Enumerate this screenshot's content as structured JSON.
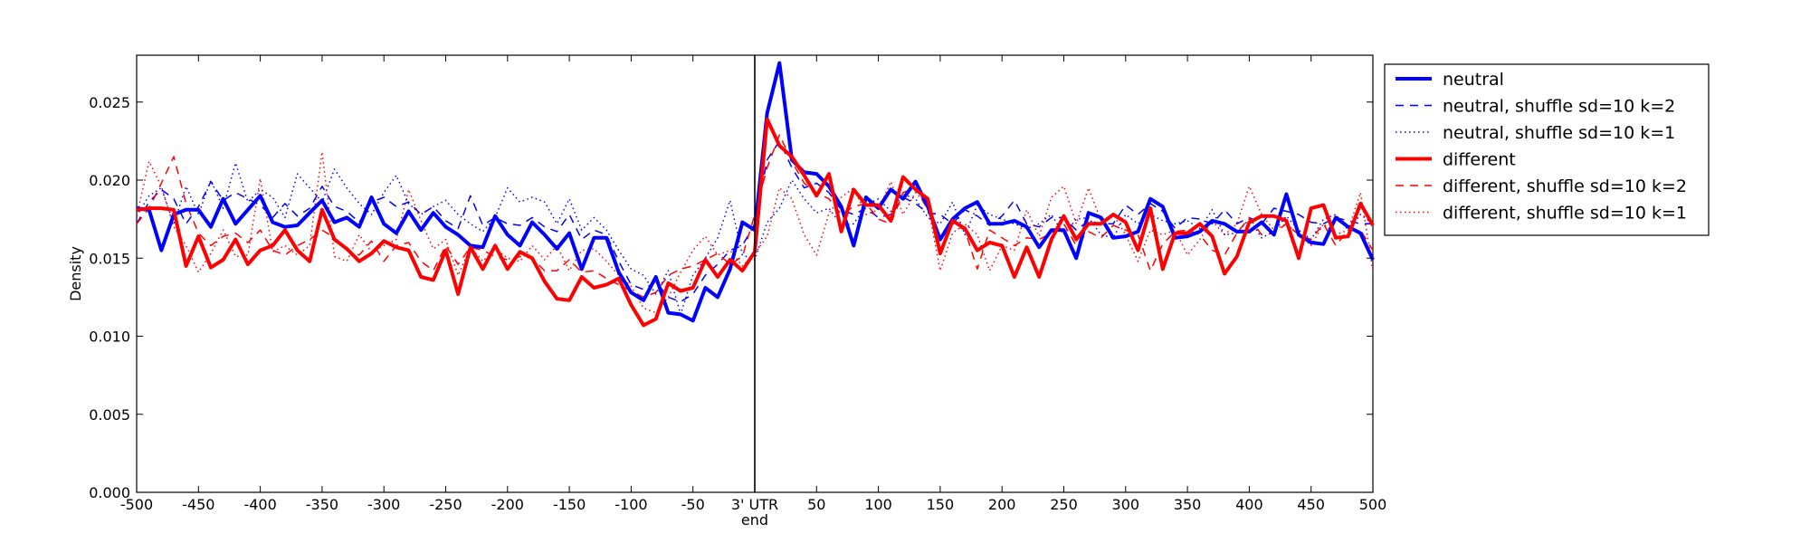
{
  "chart_data": {
    "type": "line",
    "title": "",
    "xlabel": "end",
    "ylabel": "Density",
    "xlim": [
      -500,
      500
    ],
    "ylim": [
      0,
      0.028
    ],
    "grid": false,
    "legend_position": "outside-top-right",
    "vline_x": 0,
    "x_tick_values": [
      -500,
      -450,
      -400,
      -350,
      -300,
      -250,
      -200,
      -150,
      -100,
      -50,
      0,
      50,
      100,
      150,
      200,
      250,
      300,
      350,
      400,
      450,
      500
    ],
    "x_tick_labels": [
      "-500",
      "-450",
      "-400",
      "-350",
      "-300",
      "-250",
      "-200",
      "-150",
      "-100",
      "-50",
      "3' UTR",
      "50",
      "100",
      "150",
      "200",
      "250",
      "300",
      "350",
      "400",
      "450",
      "500"
    ],
    "y_tick_values": [
      0,
      0.005,
      0.01,
      0.015,
      0.02,
      0.025
    ],
    "y_tick_labels": [
      "0.000",
      "0.005",
      "0.010",
      "0.015",
      "0.020",
      "0.025"
    ],
    "x": [
      -500,
      -490,
      -480,
      -470,
      -460,
      -450,
      -440,
      -430,
      -420,
      -410,
      -400,
      -390,
      -380,
      -370,
      -360,
      -350,
      -340,
      -330,
      -320,
      -310,
      -300,
      -290,
      -280,
      -270,
      -260,
      -250,
      -240,
      -230,
      -220,
      -210,
      -200,
      -190,
      -180,
      -170,
      -160,
      -150,
      -140,
      -130,
      -120,
      -110,
      -100,
      -90,
      -80,
      -70,
      -60,
      -50,
      -40,
      -30,
      -20,
      -10,
      0,
      10,
      20,
      30,
      40,
      50,
      60,
      70,
      80,
      90,
      100,
      110,
      120,
      130,
      140,
      150,
      160,
      170,
      180,
      190,
      200,
      210,
      220,
      230,
      240,
      250,
      260,
      270,
      280,
      290,
      300,
      310,
      320,
      330,
      340,
      350,
      360,
      370,
      380,
      390,
      400,
      410,
      420,
      430,
      440,
      450,
      460,
      470,
      480,
      490,
      500
    ],
    "series": [
      {
        "name": "neutral",
        "color": "#0000ff",
        "style": "solid",
        "values": [
          0.0182,
          0.0181,
          0.0155,
          0.0178,
          0.0181,
          0.0181,
          0.017,
          0.0188,
          0.0172,
          0.0181,
          0.019,
          0.0173,
          0.017,
          0.0171,
          0.0179,
          0.0187,
          0.0173,
          0.0176,
          0.017,
          0.0189,
          0.0172,
          0.0166,
          0.018,
          0.0168,
          0.0179,
          0.017,
          0.0165,
          0.0158,
          0.0157,
          0.0177,
          0.0165,
          0.0158,
          0.0173,
          0.0165,
          0.0156,
          0.0166,
          0.0143,
          0.0163,
          0.0163,
          0.0141,
          0.0128,
          0.0123,
          0.0138,
          0.0115,
          0.0114,
          0.011,
          0.0131,
          0.0125,
          0.0143,
          0.0173,
          0.0168,
          0.0243,
          0.0275,
          0.0213,
          0.0205,
          0.0204,
          0.0196,
          0.0183,
          0.0158,
          0.0189,
          0.0182,
          0.0194,
          0.0188,
          0.0199,
          0.0183,
          0.0162,
          0.0175,
          0.0182,
          0.0186,
          0.0172,
          0.0172,
          0.0174,
          0.017,
          0.0157,
          0.0168,
          0.0168,
          0.015,
          0.0179,
          0.0176,
          0.0163,
          0.0164,
          0.0167,
          0.0188,
          0.0183,
          0.0163,
          0.0164,
          0.0167,
          0.0174,
          0.0172,
          0.0167,
          0.0167,
          0.0173,
          0.0165,
          0.0191,
          0.0165,
          0.016,
          0.0159,
          0.0176,
          0.017,
          0.0166,
          0.0149
        ]
      },
      {
        "name": "neutral, shuffle sd=10 k=2",
        "color": "#0000ff",
        "style": "dashed",
        "values": [
          0.0172,
          0.0186,
          0.0194,
          0.0188,
          0.0172,
          0.0183,
          0.0199,
          0.0187,
          0.0192,
          0.0188,
          0.0184,
          0.0176,
          0.0185,
          0.0177,
          0.0182,
          0.0196,
          0.0183,
          0.018,
          0.0173,
          0.0186,
          0.0189,
          0.0183,
          0.0186,
          0.0178,
          0.0183,
          0.0174,
          0.0169,
          0.019,
          0.0171,
          0.0176,
          0.0172,
          0.0171,
          0.0176,
          0.017,
          0.0167,
          0.0178,
          0.0162,
          0.0168,
          0.0165,
          0.0148,
          0.0133,
          0.013,
          0.0135,
          0.0125,
          0.0122,
          0.0127,
          0.0139,
          0.0146,
          0.0155,
          0.0158,
          0.0172,
          0.0213,
          0.0225,
          0.0208,
          0.0195,
          0.0198,
          0.0192,
          0.0181,
          0.0178,
          0.0182,
          0.0176,
          0.0178,
          0.0189,
          0.0185,
          0.0179,
          0.0178,
          0.0172,
          0.0181,
          0.0177,
          0.0171,
          0.0177,
          0.0187,
          0.0172,
          0.017,
          0.0176,
          0.0176,
          0.0168,
          0.0174,
          0.0172,
          0.0172,
          0.0184,
          0.0178,
          0.0185,
          0.018,
          0.0169,
          0.0176,
          0.0175,
          0.0172,
          0.0181,
          0.0172,
          0.0176,
          0.0172,
          0.0182,
          0.018,
          0.0178,
          0.0173,
          0.0172,
          0.0176,
          0.0174,
          0.0172,
          0.0172
        ]
      },
      {
        "name": "neutral, shuffle sd=10 k=1",
        "color": "#0000ff",
        "style": "dotted",
        "values": [
          0.0177,
          0.019,
          0.0195,
          0.0172,
          0.0196,
          0.0178,
          0.02,
          0.0182,
          0.0211,
          0.0186,
          0.0194,
          0.0189,
          0.0176,
          0.0204,
          0.0195,
          0.0186,
          0.0207,
          0.0195,
          0.0185,
          0.0178,
          0.0192,
          0.0203,
          0.0185,
          0.0178,
          0.0183,
          0.0187,
          0.0178,
          0.0172,
          0.0167,
          0.0176,
          0.0195,
          0.0186,
          0.0189,
          0.0186,
          0.0172,
          0.0188,
          0.0168,
          0.0176,
          0.0168,
          0.0155,
          0.0143,
          0.0139,
          0.0127,
          0.0142,
          0.0114,
          0.0139,
          0.015,
          0.0163,
          0.0187,
          0.0152,
          0.0149,
          0.0173,
          0.0182,
          0.02,
          0.0188,
          0.0179,
          0.0182,
          0.0171,
          0.0172,
          0.0184,
          0.0188,
          0.018,
          0.0191,
          0.0188,
          0.0176,
          0.0172,
          0.0186,
          0.0165,
          0.0184,
          0.0178,
          0.0175,
          0.0172,
          0.0169,
          0.0172,
          0.0178,
          0.0165,
          0.0175,
          0.0176,
          0.0165,
          0.0163,
          0.0178,
          0.0172,
          0.0178,
          0.0174,
          0.0172,
          0.0174,
          0.0169,
          0.0181,
          0.0165,
          0.0166,
          0.0175,
          0.0163,
          0.0167,
          0.0177,
          0.0168,
          0.0162,
          0.0175,
          0.0178,
          0.0168,
          0.0178,
          0.0172
        ]
      },
      {
        "name": "different",
        "color": "#ff0000",
        "style": "solid",
        "values": [
          0.0181,
          0.0182,
          0.0182,
          0.0181,
          0.0145,
          0.0164,
          0.0144,
          0.0149,
          0.0162,
          0.0146,
          0.0155,
          0.0158,
          0.0168,
          0.0155,
          0.0148,
          0.0181,
          0.0162,
          0.0156,
          0.0148,
          0.0153,
          0.0161,
          0.0157,
          0.0155,
          0.0138,
          0.0136,
          0.0155,
          0.0127,
          0.0157,
          0.0143,
          0.0158,
          0.0143,
          0.0154,
          0.015,
          0.0135,
          0.0124,
          0.0123,
          0.0138,
          0.0131,
          0.0133,
          0.0137,
          0.012,
          0.0107,
          0.0111,
          0.0134,
          0.0129,
          0.0131,
          0.0149,
          0.0138,
          0.0149,
          0.0142,
          0.0154,
          0.0239,
          0.0222,
          0.0215,
          0.0203,
          0.019,
          0.0204,
          0.0167,
          0.0194,
          0.0184,
          0.0184,
          0.0174,
          0.0202,
          0.0194,
          0.0188,
          0.0153,
          0.0174,
          0.0169,
          0.0155,
          0.016,
          0.0158,
          0.0138,
          0.0157,
          0.0138,
          0.0162,
          0.0177,
          0.0162,
          0.0172,
          0.0172,
          0.0178,
          0.0173,
          0.0155,
          0.0182,
          0.0143,
          0.0166,
          0.0166,
          0.0172,
          0.0164,
          0.014,
          0.0151,
          0.0173,
          0.0177,
          0.0177,
          0.0174,
          0.015,
          0.0182,
          0.0184,
          0.0163,
          0.0164,
          0.0185,
          0.0171
        ]
      },
      {
        "name": "different, shuffle sd=10 k=2",
        "color": "#ff0000",
        "style": "dashed",
        "values": [
          0.0172,
          0.0182,
          0.0198,
          0.0215,
          0.0185,
          0.0166,
          0.0158,
          0.0164,
          0.0166,
          0.016,
          0.0168,
          0.0155,
          0.0152,
          0.0158,
          0.0162,
          0.0168,
          0.0163,
          0.0155,
          0.0152,
          0.0161,
          0.0148,
          0.0158,
          0.016,
          0.0148,
          0.0142,
          0.0158,
          0.0146,
          0.0157,
          0.0155,
          0.0151,
          0.0149,
          0.0151,
          0.015,
          0.0142,
          0.0142,
          0.0149,
          0.0141,
          0.0142,
          0.0137,
          0.0133,
          0.0129,
          0.0125,
          0.0128,
          0.0139,
          0.0143,
          0.0145,
          0.0149,
          0.0153,
          0.0146,
          0.0151,
          0.0178,
          0.0208,
          0.0229,
          0.0212,
          0.0198,
          0.0192,
          0.0188,
          0.0178,
          0.0183,
          0.0185,
          0.0175,
          0.0172,
          0.0192,
          0.0195,
          0.0181,
          0.0162,
          0.0172,
          0.0168,
          0.0143,
          0.0168,
          0.0163,
          0.0158,
          0.0163,
          0.0162,
          0.0166,
          0.0172,
          0.0158,
          0.0167,
          0.0163,
          0.0171,
          0.0168,
          0.0165,
          0.0142,
          0.0159,
          0.0167,
          0.0168,
          0.0165,
          0.0155,
          0.0152,
          0.0166,
          0.0176,
          0.0165,
          0.0166,
          0.0172,
          0.0165,
          0.0162,
          0.0172,
          0.0158,
          0.0168,
          0.0168,
          0.0155
        ]
      },
      {
        "name": "different, shuffle sd=10 k=1",
        "color": "#ff0000",
        "style": "dotted",
        "values": [
          0.0177,
          0.0212,
          0.0196,
          0.017,
          0.0158,
          0.0141,
          0.0153,
          0.0168,
          0.0151,
          0.0152,
          0.0201,
          0.0154,
          0.0158,
          0.0152,
          0.0158,
          0.0218,
          0.0151,
          0.0148,
          0.0165,
          0.0154,
          0.0158,
          0.0162,
          0.0194,
          0.0174,
          0.0156,
          0.0162,
          0.0139,
          0.0157,
          0.0148,
          0.0156,
          0.015,
          0.0148,
          0.0158,
          0.0149,
          0.0158,
          0.0142,
          0.0155,
          0.0156,
          0.0148,
          0.0139,
          0.0132,
          0.0118,
          0.0115,
          0.0125,
          0.0141,
          0.0155,
          0.0164,
          0.0152,
          0.0155,
          0.0145,
          0.0153,
          0.0164,
          0.0195,
          0.0188,
          0.0165,
          0.0152,
          0.0179,
          0.0189,
          0.0195,
          0.0178,
          0.0181,
          0.0199,
          0.0178,
          0.0192,
          0.0184,
          0.0142,
          0.0166,
          0.0172,
          0.0165,
          0.0142,
          0.0158,
          0.0155,
          0.0181,
          0.0164,
          0.0189,
          0.0196,
          0.0172,
          0.0195,
          0.0174,
          0.0178,
          0.0165,
          0.0148,
          0.0168,
          0.0165,
          0.0168,
          0.0152,
          0.0162,
          0.0174,
          0.0165,
          0.0172,
          0.0196,
          0.0178,
          0.0168,
          0.0172,
          0.0165,
          0.0158,
          0.0172,
          0.0165,
          0.0168,
          0.0192,
          0.0142
        ]
      }
    ]
  }
}
